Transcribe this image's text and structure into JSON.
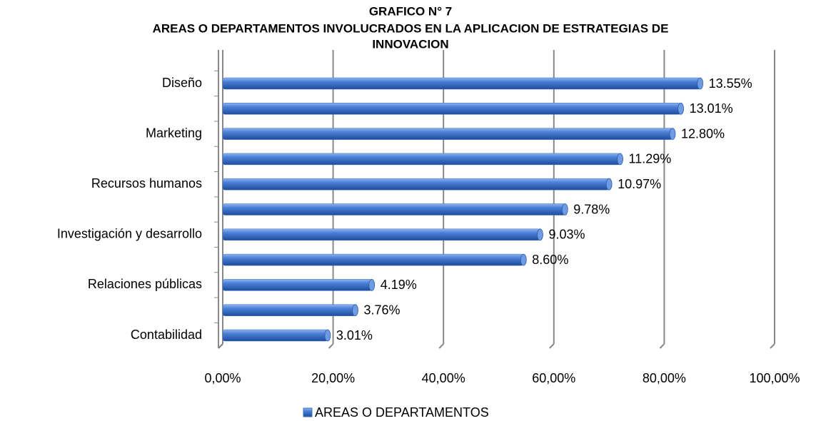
{
  "chart_data": {
    "type": "hbar",
    "title": "GRAFICO N° 7",
    "subtitle": [
      "AREAS O DEPARTAMENTOS INVOLUCRADOS EN LA APLICACION DE ESTRATEGIAS DE",
      "INNOVACION"
    ],
    "categories": [
      "Diseño",
      null,
      "Marketing",
      null,
      "Recursos humanos",
      null,
      "Investigación y desarrollo",
      null,
      "Relaciones públicas",
      null,
      "Contabilidad"
    ],
    "series": [
      {
        "name": "AREAS O DEPARTAMENTOS",
        "color": "#3a6fc4",
        "values": [
          86.5,
          83,
          81.5,
          72,
          70,
          62,
          57.5,
          54.5,
          27,
          24,
          19
        ],
        "value_labels": [
          "13.55%",
          "13.01%",
          "12.80%",
          "11.29%",
          "10.97%",
          "9.78%",
          "9.03%",
          "8.60%",
          "4.19%",
          "3.76%",
          "3.01%"
        ]
      }
    ],
    "xlim": [
      0,
      100
    ],
    "xticks": [
      {
        "value": 0,
        "label": "0,00%"
      },
      {
        "value": 20,
        "label": "20,00%"
      },
      {
        "value": 40,
        "label": "40,00%"
      },
      {
        "value": 60,
        "label": "60,00%"
      },
      {
        "value": 80,
        "label": "80,00%"
      },
      {
        "value": 100,
        "label": "100,00%"
      }
    ],
    "grid": true,
    "legend": "bottom"
  }
}
